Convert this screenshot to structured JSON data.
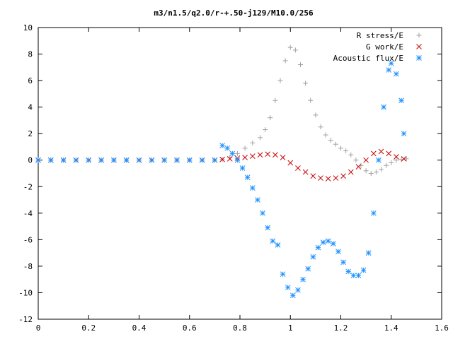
{
  "chart_data": {
    "type": "scatter",
    "title": "m3/n1.5/q2.0/r-+.50-j129/M10.0/256",
    "xlabel": "",
    "ylabel": "",
    "xlim": [
      0,
      1.6
    ],
    "ylim": [
      -12,
      10
    ],
    "xticks": [
      "0",
      "0.2",
      "0.4",
      "0.6",
      "0.8",
      "1",
      "1.2",
      "1.4",
      "1.6"
    ],
    "yticks": [
      "-12",
      "-10",
      "-8",
      "-6",
      "-4",
      "-2",
      "0",
      "2",
      "4",
      "6",
      "8",
      "10"
    ],
    "grid": false,
    "legend_position": "top-right",
    "series": [
      {
        "name": "R stress/E",
        "marker": "+",
        "color": "#a0a0a0",
        "points": [
          [
            0.0,
            0
          ],
          [
            0.05,
            0
          ],
          [
            0.1,
            0
          ],
          [
            0.15,
            0
          ],
          [
            0.2,
            0
          ],
          [
            0.25,
            0
          ],
          [
            0.3,
            0
          ],
          [
            0.35,
            0
          ],
          [
            0.4,
            0
          ],
          [
            0.45,
            0
          ],
          [
            0.5,
            0
          ],
          [
            0.55,
            0
          ],
          [
            0.6,
            0
          ],
          [
            0.65,
            0
          ],
          [
            0.7,
            0
          ],
          [
            0.73,
            0.05
          ],
          [
            0.76,
            0.2
          ],
          [
            0.79,
            0.5
          ],
          [
            0.82,
            0.9
          ],
          [
            0.85,
            1.3
          ],
          [
            0.88,
            1.7
          ],
          [
            0.9,
            2.3
          ],
          [
            0.92,
            3.2
          ],
          [
            0.94,
            4.5
          ],
          [
            0.96,
            6.0
          ],
          [
            0.98,
            7.5
          ],
          [
            1.0,
            8.5
          ],
          [
            1.02,
            8.3
          ],
          [
            1.04,
            7.2
          ],
          [
            1.06,
            5.8
          ],
          [
            1.08,
            4.5
          ],
          [
            1.1,
            3.4
          ],
          [
            1.12,
            2.5
          ],
          [
            1.14,
            1.9
          ],
          [
            1.16,
            1.5
          ],
          [
            1.18,
            1.2
          ],
          [
            1.2,
            0.9
          ],
          [
            1.22,
            0.7
          ],
          [
            1.24,
            0.4
          ],
          [
            1.26,
            0.0
          ],
          [
            1.28,
            -0.4
          ],
          [
            1.3,
            -0.8
          ],
          [
            1.32,
            -1.0
          ],
          [
            1.34,
            -0.9
          ],
          [
            1.36,
            -0.7
          ],
          [
            1.38,
            -0.4
          ],
          [
            1.4,
            -0.2
          ],
          [
            1.42,
            0.0
          ],
          [
            1.44,
            0.05
          ],
          [
            1.46,
            0.1
          ]
        ]
      },
      {
        "name": "G work/E",
        "marker": "x",
        "color": "#cc0000",
        "points": [
          [
            0.0,
            0
          ],
          [
            0.05,
            0
          ],
          [
            0.1,
            0
          ],
          [
            0.15,
            0
          ],
          [
            0.2,
            0
          ],
          [
            0.25,
            0
          ],
          [
            0.3,
            0
          ],
          [
            0.35,
            0
          ],
          [
            0.4,
            0
          ],
          [
            0.45,
            0
          ],
          [
            0.5,
            0
          ],
          [
            0.55,
            0
          ],
          [
            0.6,
            0
          ],
          [
            0.65,
            0
          ],
          [
            0.7,
            0
          ],
          [
            0.73,
            0.05
          ],
          [
            0.76,
            0.1
          ],
          [
            0.79,
            0.15
          ],
          [
            0.82,
            0.2
          ],
          [
            0.85,
            0.3
          ],
          [
            0.88,
            0.4
          ],
          [
            0.91,
            0.45
          ],
          [
            0.94,
            0.4
          ],
          [
            0.97,
            0.2
          ],
          [
            1.0,
            -0.2
          ],
          [
            1.03,
            -0.6
          ],
          [
            1.06,
            -0.9
          ],
          [
            1.09,
            -1.2
          ],
          [
            1.12,
            -1.35
          ],
          [
            1.15,
            -1.4
          ],
          [
            1.18,
            -1.35
          ],
          [
            1.21,
            -1.2
          ],
          [
            1.24,
            -0.9
          ],
          [
            1.27,
            -0.5
          ],
          [
            1.3,
            0.0
          ],
          [
            1.33,
            0.5
          ],
          [
            1.36,
            0.65
          ],
          [
            1.39,
            0.5
          ],
          [
            1.42,
            0.25
          ],
          [
            1.45,
            0.1
          ]
        ]
      },
      {
        "name": "Acoustic flux/E",
        "marker": "*",
        "color": "#1e90ff",
        "points": [
          [
            0.0,
            0
          ],
          [
            0.05,
            0
          ],
          [
            0.1,
            0
          ],
          [
            0.15,
            0
          ],
          [
            0.2,
            0
          ],
          [
            0.25,
            0
          ],
          [
            0.3,
            0
          ],
          [
            0.35,
            0
          ],
          [
            0.4,
            0
          ],
          [
            0.45,
            0
          ],
          [
            0.5,
            0
          ],
          [
            0.55,
            0
          ],
          [
            0.6,
            0
          ],
          [
            0.65,
            0
          ],
          [
            0.7,
            0
          ],
          [
            0.73,
            1.1
          ],
          [
            0.75,
            0.9
          ],
          [
            0.77,
            0.5
          ],
          [
            0.79,
            0.0
          ],
          [
            0.81,
            -0.6
          ],
          [
            0.83,
            -1.3
          ],
          [
            0.85,
            -2.1
          ],
          [
            0.87,
            -3.0
          ],
          [
            0.89,
            -4.0
          ],
          [
            0.91,
            -5.1
          ],
          [
            0.93,
            -6.1
          ],
          [
            0.95,
            -6.4
          ],
          [
            0.97,
            -8.6
          ],
          [
            0.99,
            -9.6
          ],
          [
            1.01,
            -10.2
          ],
          [
            1.03,
            -9.8
          ],
          [
            1.05,
            -9.0
          ],
          [
            1.07,
            -8.2
          ],
          [
            1.09,
            -7.3
          ],
          [
            1.11,
            -6.6
          ],
          [
            1.13,
            -6.2
          ],
          [
            1.15,
            -6.1
          ],
          [
            1.17,
            -6.3
          ],
          [
            1.19,
            -6.9
          ],
          [
            1.21,
            -7.7
          ],
          [
            1.23,
            -8.4
          ],
          [
            1.25,
            -8.7
          ],
          [
            1.27,
            -8.7
          ],
          [
            1.29,
            -8.3
          ],
          [
            1.31,
            -7.0
          ],
          [
            1.33,
            -4.0
          ],
          [
            1.35,
            0.0
          ],
          [
            1.37,
            4.0
          ],
          [
            1.39,
            6.8
          ],
          [
            1.4,
            7.3
          ],
          [
            1.42,
            6.5
          ],
          [
            1.44,
            4.5
          ],
          [
            1.45,
            2.0
          ]
        ]
      }
    ]
  }
}
